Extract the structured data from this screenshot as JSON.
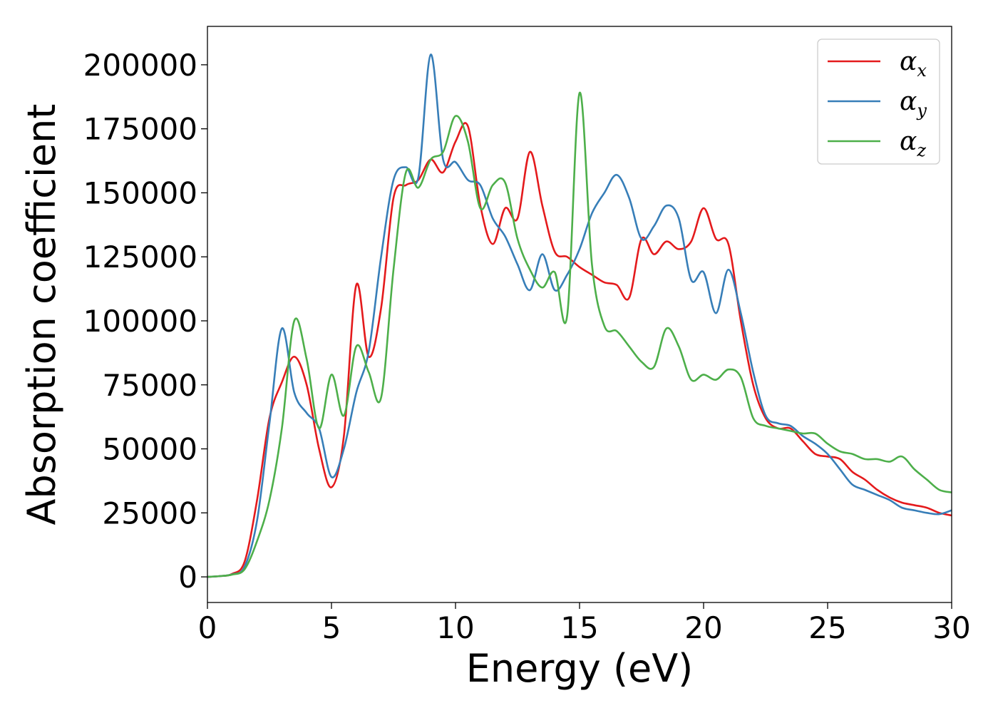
{
  "chart_data": {
    "type": "line",
    "title": "",
    "xlabel": "Energy (eV)",
    "ylabel": "Absorption coefficient",
    "xlim": [
      0,
      30
    ],
    "ylim": [
      -10000,
      215000
    ],
    "xticks": [
      0,
      5,
      10,
      15,
      20,
      25,
      30
    ],
    "yticks": [
      0,
      25000,
      50000,
      75000,
      100000,
      125000,
      150000,
      175000,
      200000
    ],
    "grid": false,
    "legend_position": "top-right",
    "x": [
      0,
      0.5,
      1,
      1.5,
      2,
      2.5,
      3,
      3.5,
      4,
      4.5,
      5,
      5.5,
      6,
      6.5,
      7,
      7.5,
      8,
      8.5,
      9,
      9.5,
      10,
      10.5,
      11,
      11.5,
      12,
      12.5,
      13,
      13.5,
      14,
      14.5,
      15,
      15.5,
      16,
      16.5,
      17,
      17.5,
      18,
      18.5,
      19,
      19.5,
      20,
      20.5,
      21,
      21.5,
      22,
      22.5,
      23,
      23.5,
      24,
      24.5,
      25,
      25.5,
      26,
      26.5,
      27,
      27.5,
      28,
      28.5,
      29,
      29.5,
      30
    ],
    "series": [
      {
        "name": "α",
        "subscript": "x",
        "color": "#e41a1c",
        "values": [
          0,
          300,
          1200,
          6000,
          30000,
          62000,
          76000,
          86000,
          75000,
          50000,
          35000,
          55000,
          114000,
          86000,
          105000,
          148000,
          153000,
          155000,
          163000,
          158000,
          170000,
          176000,
          145000,
          130000,
          144000,
          140000,
          166000,
          145000,
          127000,
          125000,
          121000,
          118000,
          115000,
          114000,
          109000,
          132000,
          126000,
          131000,
          128000,
          131000,
          144000,
          132000,
          130000,
          100000,
          75000,
          62000,
          58000,
          58000,
          53000,
          48000,
          47000,
          46000,
          41000,
          38000,
          34000,
          31000,
          29000,
          28000,
          27000,
          25000,
          24000
        ]
      },
      {
        "name": "α",
        "subscript": "y",
        "color": "#377eb8",
        "values": [
          0,
          300,
          1000,
          4000,
          22000,
          60000,
          97000,
          72000,
          64000,
          58000,
          39000,
          50000,
          72000,
          88000,
          125000,
          155000,
          160000,
          156000,
          204000,
          163000,
          162000,
          155000,
          153000,
          140000,
          133000,
          122000,
          112000,
          126000,
          112000,
          118000,
          128000,
          142000,
          150000,
          157000,
          148000,
          132000,
          137000,
          145000,
          140000,
          116000,
          119000,
          103000,
          120000,
          103000,
          80000,
          63000,
          60000,
          59000,
          55000,
          52000,
          48000,
          42000,
          36000,
          34000,
          32000,
          30000,
          27000,
          26000,
          25000,
          24500,
          26000
        ]
      },
      {
        "name": "α",
        "subscript": "z",
        "color": "#4daf4a",
        "values": [
          0,
          300,
          900,
          3000,
          14000,
          30000,
          58000,
          100000,
          85000,
          58000,
          79000,
          63000,
          90000,
          80000,
          70000,
          120000,
          158000,
          152000,
          163000,
          166000,
          180000,
          170000,
          144000,
          153000,
          154000,
          132000,
          120000,
          113000,
          119000,
          102000,
          189000,
          122000,
          98000,
          96000,
          90000,
          84000,
          82000,
          97000,
          90000,
          77000,
          79000,
          77000,
          81000,
          78000,
          62000,
          59000,
          58000,
          57000,
          56000,
          56000,
          52000,
          49000,
          48000,
          46000,
          46000,
          45000,
          47000,
          42000,
          38000,
          34000,
          33000
        ]
      }
    ]
  }
}
